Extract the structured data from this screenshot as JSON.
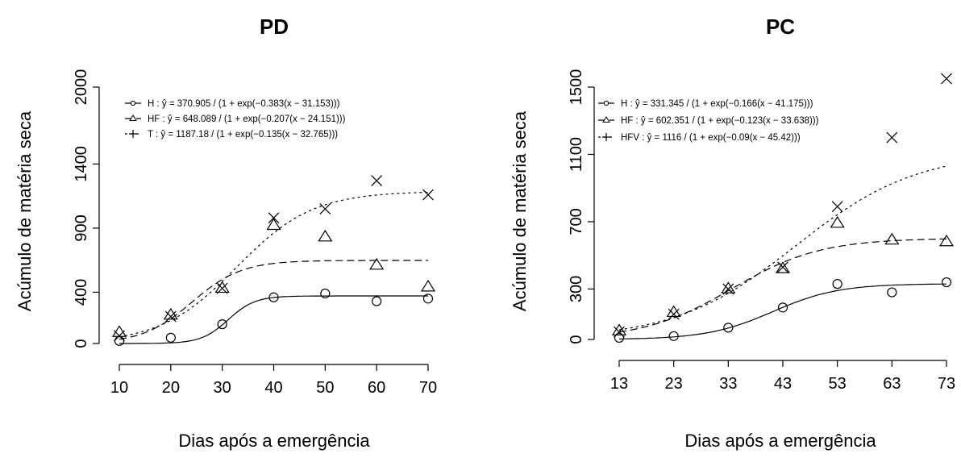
{
  "chart_data": [
    {
      "type": "scatter",
      "title": "PD",
      "xlabel": "Dias após a emergência",
      "ylabel": "Acúmulo de matéria seca",
      "xlim": [
        10,
        70
      ],
      "ylim": [
        0,
        2000
      ],
      "xticks": [
        "10",
        "20",
        "30",
        "40",
        "50",
        "60",
        "70"
      ],
      "yticks": [
        "0",
        "400",
        "900",
        "1400",
        "2000"
      ],
      "legend_position": "top-left",
      "series": [
        {
          "name": "H",
          "marker": "circle",
          "line": "solid",
          "legend": "H : ŷ = 370.905 / (1 + exp(−0.383(x − 31.153)))",
          "x": [
            10,
            20,
            30,
            40,
            50,
            60,
            70
          ],
          "y": [
            20,
            45,
            150,
            360,
            390,
            330,
            350
          ],
          "fit": {
            "a": 370.905,
            "b": 0.383,
            "c": 31.153
          }
        },
        {
          "name": "HF",
          "marker": "triangle",
          "line": "dashed",
          "legend": "HF : ŷ = 648.089 / (1 + exp(−0.207(x − 24.151)))",
          "x": [
            10,
            20,
            30,
            40,
            50,
            60,
            70
          ],
          "y": [
            85,
            220,
            430,
            920,
            830,
            610,
            440
          ],
          "fit": {
            "a": 648.089,
            "b": 0.207,
            "c": 24.151
          }
        },
        {
          "name": "T",
          "marker": "x",
          "line": "dotted",
          "legend": "T : ŷ = 1187.18 / (1 + exp(−0.135(x − 32.765)))",
          "x": [
            10,
            20,
            30,
            40,
            50,
            60,
            70
          ],
          "y": [
            60,
            210,
            430,
            980,
            1050,
            1270,
            1160
          ],
          "fit": {
            "a": 1187.18,
            "b": 0.135,
            "c": 32.765
          }
        }
      ]
    },
    {
      "type": "scatter",
      "title": "PC",
      "xlabel": "Dias após a emergência",
      "ylabel": "Acúmulo de matéria seca",
      "xlim": [
        13,
        73
      ],
      "ylim": [
        0,
        1500
      ],
      "xticks": [
        "13",
        "23",
        "33",
        "43",
        "53",
        "63",
        "73"
      ],
      "yticks": [
        "0",
        "300",
        "700",
        "1100",
        "1500"
      ],
      "legend_position": "top-left",
      "series": [
        {
          "name": "H",
          "marker": "circle",
          "line": "solid",
          "legend": "H : ŷ = 331.345 / (1 + exp(−0.166(x − 41.175)))",
          "x": [
            13,
            23,
            33,
            43,
            53,
            63,
            73
          ],
          "y": [
            10,
            20,
            70,
            190,
            330,
            280,
            340
          ],
          "fit": {
            "a": 331.345,
            "b": 0.166,
            "c": 41.175
          }
        },
        {
          "name": "HF",
          "marker": "triangle",
          "line": "dashed",
          "legend": "HF : ŷ = 602.351 / (1 + exp(−0.123(x − 33.638)))",
          "x": [
            13,
            23,
            33,
            43,
            53,
            63,
            73
          ],
          "y": [
            50,
            160,
            300,
            420,
            690,
            590,
            580
          ],
          "fit": {
            "a": 602.351,
            "b": 0.123,
            "c": 33.638
          }
        },
        {
          "name": "HFV",
          "marker": "x",
          "line": "dotted",
          "legend": "HFV : ŷ = 1116 / (1 + exp(−0.09(x − 45.42)))",
          "x": [
            13,
            23,
            33,
            43,
            53,
            63,
            73
          ],
          "y": [
            45,
            150,
            300,
            430,
            790,
            1200,
            1550
          ],
          "fit": {
            "a": 1116,
            "b": 0.09,
            "c": 45.42
          }
        }
      ]
    }
  ]
}
